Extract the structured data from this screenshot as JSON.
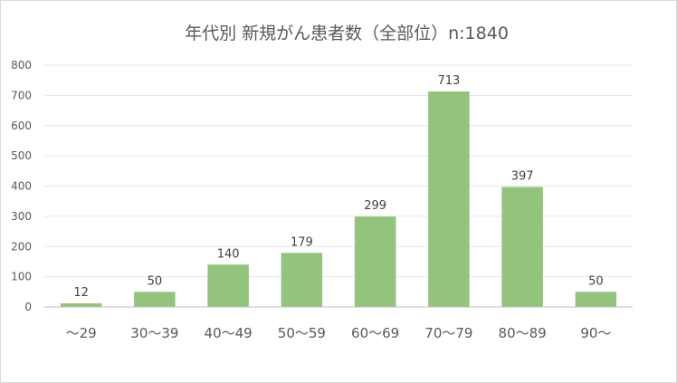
{
  "chart_data": {
    "type": "bar",
    "title": "年代別 新規がん患者数（全部位）n:1840",
    "xlabel": "",
    "ylabel": "",
    "categories": [
      "～29",
      "30～39",
      "40～49",
      "50～59",
      "60～69",
      "70～79",
      "80～89",
      "90～"
    ],
    "values": [
      12,
      50,
      140,
      179,
      299,
      713,
      397,
      50
    ],
    "ylim": [
      0,
      800
    ],
    "yticks": [
      "0",
      "100",
      "200",
      "300",
      "400",
      "500",
      "600",
      "700",
      "800"
    ],
    "grid": true,
    "legend": "none",
    "bar_color": "#92c47c"
  }
}
